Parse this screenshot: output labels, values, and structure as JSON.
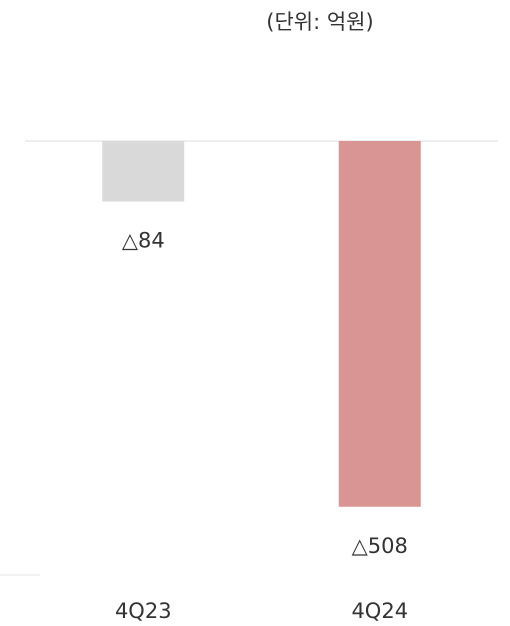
{
  "chart_data": {
    "type": "bar",
    "subtitle": "(단위: 억원)",
    "categories": [
      "4Q23",
      "4Q24"
    ],
    "values": [
      -84,
      -508
    ],
    "value_labels": [
      "△84",
      "△508"
    ],
    "colors": [
      "#d9d9d9",
      "#d99594"
    ],
    "ylim": [
      -600,
      0
    ]
  }
}
